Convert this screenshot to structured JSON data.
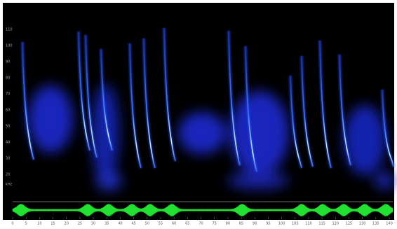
{
  "spectrogram": {
    "y_axis": {
      "labels": [
        "110",
        "100",
        "90",
        "80",
        "70",
        "60",
        "50",
        "40",
        "30",
        "20"
      ],
      "unit": "kHz"
    },
    "x_axis": {
      "labels": [
        "0",
        "5",
        "10",
        "15",
        "20",
        "25",
        "30",
        "35",
        "40",
        "45",
        "50",
        "55",
        "60",
        "65",
        "70",
        "75",
        "80",
        "85",
        "90",
        "95",
        "100",
        "105",
        "110",
        "115",
        "120",
        "125",
        "130",
        "135",
        "140"
      ]
    }
  }
}
